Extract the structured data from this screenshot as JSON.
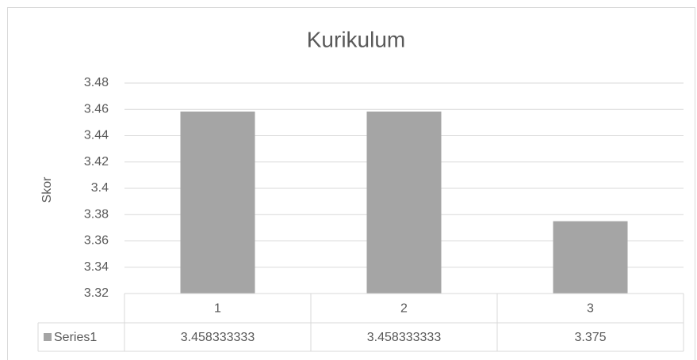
{
  "chart_data": {
    "type": "bar",
    "title": "Kurikulum",
    "y_label": "Skor",
    "categories": [
      "1",
      "2",
      "3"
    ],
    "series": [
      {
        "name": "Series1",
        "color": "#a5a5a5",
        "values": [
          3.458333333,
          3.458333333,
          3.375
        ]
      }
    ],
    "ylim": [
      3.32,
      3.48
    ],
    "yticks": [
      3.32,
      3.34,
      3.36,
      3.38,
      3.4,
      3.42,
      3.44,
      3.46,
      3.48
    ],
    "grid": true,
    "data_table": true
  }
}
